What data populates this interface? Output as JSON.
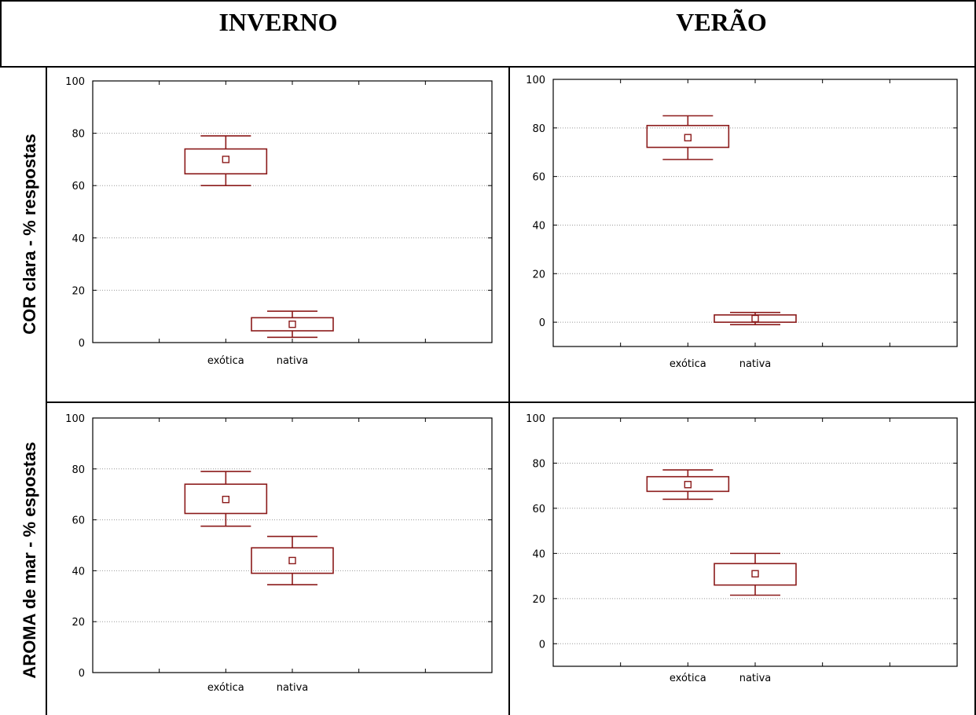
{
  "columns": {
    "left_header": "INVERNO",
    "right_header": "VERÃO"
  },
  "rows": {
    "top_label": "COR clara -  %  respostas",
    "bottom_label": "AROMA de mar -  % espostas"
  },
  "colors": {
    "box": "#8b1a1a",
    "grid": "#999999",
    "axis": "#000000"
  },
  "chart_data": [
    {
      "type": "box",
      "season": "INVERNO",
      "metric": "COR clara -  %  respostas",
      "ylim": [
        0,
        100
      ],
      "yticks": [
        "0",
        "20",
        "40",
        "60",
        "80",
        "100"
      ],
      "categories": [
        "exótica",
        "nativa"
      ],
      "boxes": [
        {
          "category": "exótica",
          "mean": 70,
          "box_low": 64.5,
          "box_high": 74,
          "whisker_low": 60,
          "whisker_high": 79
        },
        {
          "category": "nativa",
          "mean": 7,
          "box_low": 4.5,
          "box_high": 9.5,
          "whisker_low": 2,
          "whisker_high": 12
        }
      ]
    },
    {
      "type": "box",
      "season": "VERÃO",
      "metric": "COR clara -  %  respostas",
      "ylim": [
        -10,
        100
      ],
      "yticks": [
        "0",
        "20",
        "40",
        "60",
        "80",
        "100"
      ],
      "categories": [
        "exótica",
        "nativa"
      ],
      "boxes": [
        {
          "category": "exótica",
          "mean": 76,
          "box_low": 72,
          "box_high": 81,
          "whisker_low": 67,
          "whisker_high": 85
        },
        {
          "category": "nativa",
          "mean": 1.5,
          "box_low": 0,
          "box_high": 3,
          "whisker_low": -1,
          "whisker_high": 4
        }
      ]
    },
    {
      "type": "box",
      "season": "INVERNO",
      "metric": "AROMA de mar -  % espostas",
      "ylim": [
        0,
        100
      ],
      "yticks": [
        "0",
        "20",
        "40",
        "60",
        "80",
        "100"
      ],
      "categories": [
        "exótica",
        "nativa"
      ],
      "boxes": [
        {
          "category": "exótica",
          "mean": 68,
          "box_low": 62.5,
          "box_high": 74,
          "whisker_low": 57.5,
          "whisker_high": 79
        },
        {
          "category": "nativa",
          "mean": 44,
          "box_low": 39,
          "box_high": 49,
          "whisker_low": 34.5,
          "whisker_high": 53.5
        }
      ]
    },
    {
      "type": "box",
      "season": "VERÃO",
      "metric": "AROMA de mar -  % espostas",
      "ylim": [
        -10,
        100
      ],
      "yticks": [
        "0",
        "20",
        "40",
        "60",
        "80",
        "100"
      ],
      "categories": [
        "exótica",
        "nativa"
      ],
      "boxes": [
        {
          "category": "exótica",
          "mean": 70.5,
          "box_low": 67.5,
          "box_high": 74,
          "whisker_low": 64,
          "whisker_high": 77
        },
        {
          "category": "nativa",
          "mean": 31,
          "box_low": 26,
          "box_high": 35.5,
          "whisker_low": 21.5,
          "whisker_high": 40
        }
      ]
    }
  ]
}
